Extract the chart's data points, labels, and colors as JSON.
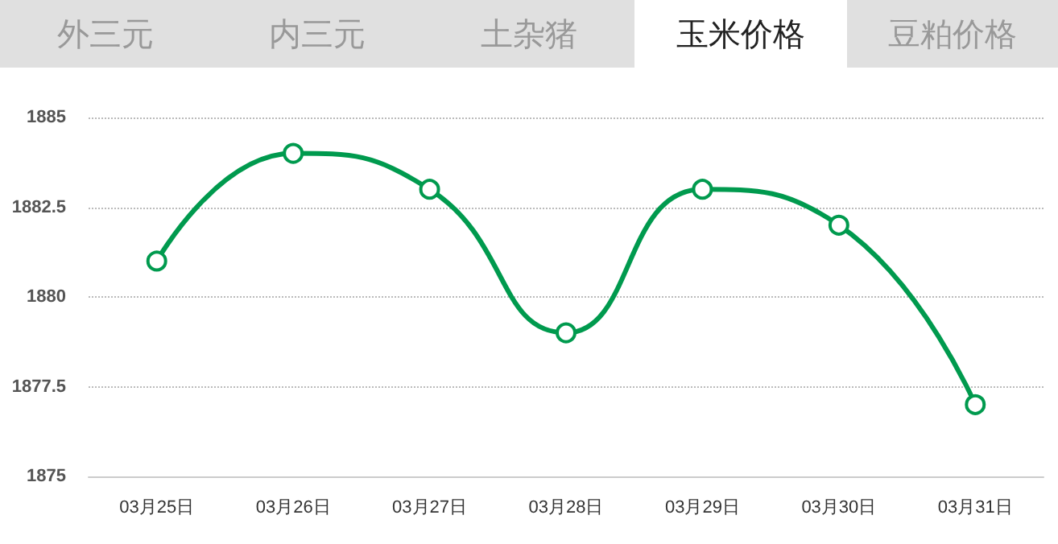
{
  "chart_data": {
    "type": "line",
    "title": "玉米价格",
    "annotations": [
      "外三元",
      "内三元",
      "土杂猪",
      "豆粕价格"
    ],
    "categories": [
      "03月25日",
      "03月26日",
      "03月27日",
      "03月28日",
      "03月29日",
      "03月30日",
      "03月31日"
    ],
    "series": [
      {
        "color": "#009a4e",
        "values": [
          1881,
          1884,
          1883,
          1879,
          1883,
          1882,
          1877
        ]
      }
    ],
    "ylim": [
      1875,
      1885
    ],
    "yticks": [
      1875,
      1877.5,
      1880,
      1882.5,
      1885
    ],
    "grid": "y",
    "marker": "circle",
    "line_style": "solid"
  }
}
